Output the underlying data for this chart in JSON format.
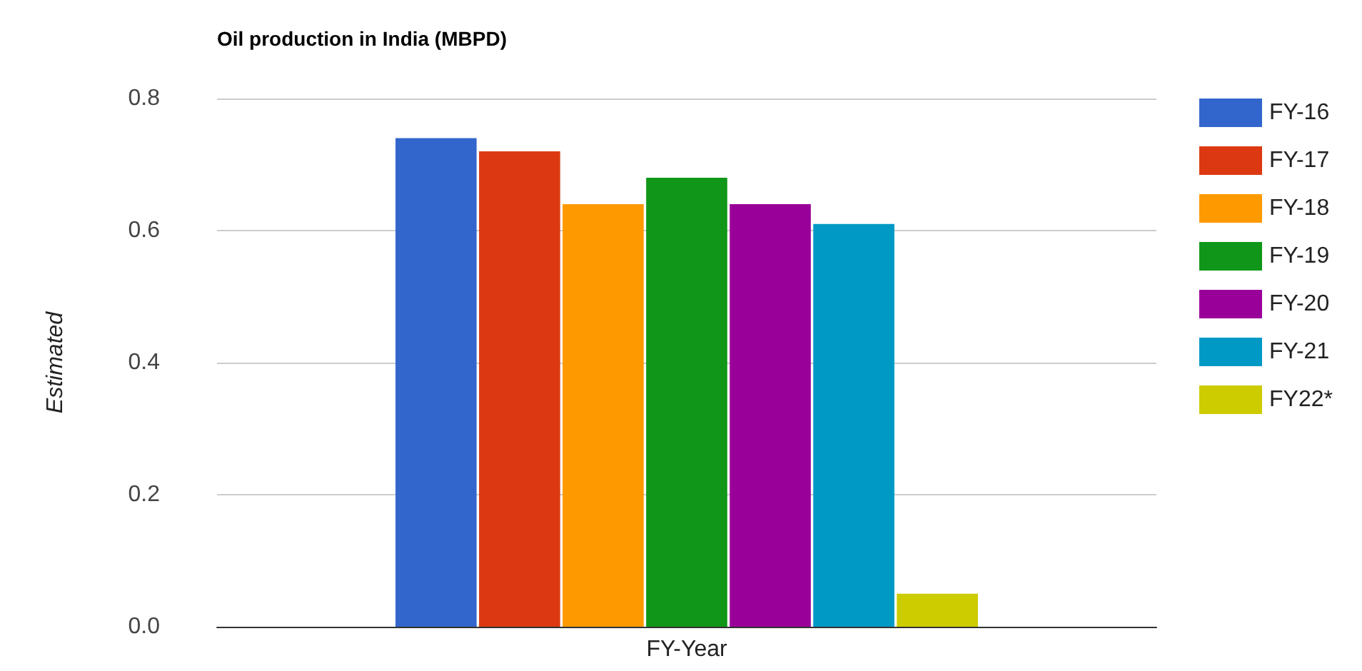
{
  "chart_data": {
    "type": "bar",
    "title": "Oil production in India (MBPD)",
    "ylabel": "Estimated",
    "categories": [
      "FY-Year"
    ],
    "series": [
      {
        "name": "FY-16",
        "color": "#3366cc",
        "values": [
          0.74
        ]
      },
      {
        "name": "FY-17",
        "color": "#dc3912",
        "values": [
          0.72
        ]
      },
      {
        "name": "FY-18",
        "color": "#ff9900",
        "values": [
          0.64
        ]
      },
      {
        "name": "FY-19",
        "color": "#109618",
        "values": [
          0.68
        ]
      },
      {
        "name": "FY-20",
        "color": "#990099",
        "values": [
          0.64
        ]
      },
      {
        "name": "FY-21",
        "color": "#0099c6",
        "values": [
          0.61
        ]
      },
      {
        "name": "FY22*",
        "color": "#cccc00",
        "values": [
          0.05
        ]
      }
    ],
    "ylim": [
      0,
      0.8
    ],
    "yticks": [
      {
        "value": 0,
        "label": "0.0"
      },
      {
        "value": 0.2,
        "label": "0.2"
      },
      {
        "value": 0.4,
        "label": "0.4"
      },
      {
        "value": 0.6,
        "label": "0.6"
      },
      {
        "value": 0.8,
        "label": "0.8"
      }
    ],
    "grid": true,
    "legend": "right"
  }
}
